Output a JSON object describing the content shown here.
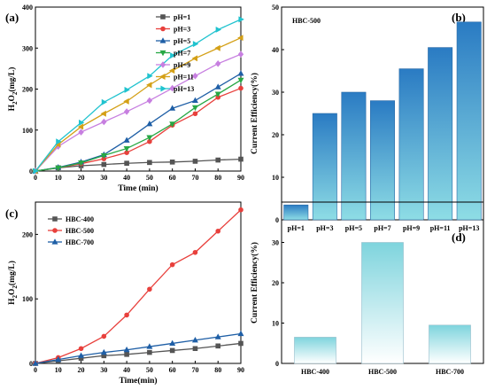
{
  "panels": {
    "a": "(a)",
    "b": "(b)",
    "c": "(c)",
    "d": "(d)"
  },
  "chart_data": [
    {
      "type": "line",
      "xlabel": "Time (min)",
      "ylabel": "H2O2(mg/L)",
      "xlim": [
        0,
        90
      ],
      "ylim": [
        0,
        400
      ],
      "xticks": [
        0,
        10,
        20,
        30,
        40,
        50,
        60,
        70,
        80,
        90
      ],
      "yticks": [
        0,
        100,
        200,
        300,
        400
      ],
      "legend_position": "top-left",
      "x": [
        0,
        10,
        20,
        30,
        40,
        50,
        60,
        70,
        80,
        90
      ],
      "series": [
        {
          "name": "pH=1",
          "color": "#555555",
          "marker": "square",
          "values": [
            0,
            8,
            13,
            16,
            19,
            21,
            22,
            24,
            27,
            29
          ]
        },
        {
          "name": "pH=3",
          "color": "#e8403c",
          "marker": "circle",
          "values": [
            0,
            8,
            18,
            30,
            45,
            72,
            112,
            140,
            180,
            202
          ]
        },
        {
          "name": "pH=5",
          "color": "#1f5fa6",
          "marker": "triangle-up",
          "values": [
            0,
            9,
            22,
            40,
            75,
            115,
            153,
            172,
            205,
            238
          ]
        },
        {
          "name": "pH=7",
          "color": "#27a844",
          "marker": "triangle-down",
          "values": [
            0,
            8,
            20,
            38,
            55,
            82,
            115,
            155,
            188,
            222
          ]
        },
        {
          "name": "pH=9",
          "color": "#c77fe0",
          "marker": "diamond",
          "values": [
            0,
            60,
            95,
            120,
            145,
            172,
            202,
            232,
            262,
            285
          ]
        },
        {
          "name": "pH=11",
          "color": "#d4a017",
          "marker": "triangle-left",
          "values": [
            0,
            65,
            108,
            140,
            170,
            210,
            245,
            275,
            300,
            325
          ]
        },
        {
          "name": "pH=13",
          "color": "#21c3cf",
          "marker": "triangle-right",
          "values": [
            0,
            72,
            118,
            168,
            198,
            232,
            282,
            310,
            345,
            370
          ]
        }
      ]
    },
    {
      "type": "bar",
      "title": "HBC-500",
      "ylabel": "Current Efficiency(%)",
      "ylim": [
        0,
        50
      ],
      "yticks": [
        0,
        10,
        20,
        30,
        40,
        50
      ],
      "categories": [
        "pH=1",
        "pH=3",
        "pH=5",
        "pH=7",
        "pH=9",
        "pH=11",
        "pH=13"
      ],
      "values": [
        3.5,
        25,
        30,
        28,
        35.5,
        40.5,
        46.5
      ],
      "bar_gradient": [
        "#2a7bc3",
        "#8edde5"
      ]
    },
    {
      "type": "line",
      "xlabel": "Time(min)",
      "ylabel": "H2O2(mg/L)",
      "xlim": [
        0,
        90
      ],
      "ylim": [
        0,
        250
      ],
      "xticks": [
        0,
        10,
        20,
        30,
        40,
        50,
        60,
        70,
        80,
        90
      ],
      "yticks": [
        0,
        100,
        200
      ],
      "legend_position": "top-left",
      "x": [
        0,
        10,
        20,
        30,
        40,
        50,
        60,
        70,
        80,
        90
      ],
      "series": [
        {
          "name": "HBC-400",
          "color": "#555555",
          "marker": "square",
          "values": [
            0,
            4,
            8,
            12,
            14,
            17,
            20,
            23,
            27,
            31
          ]
        },
        {
          "name": "HBC-500",
          "color": "#e8403c",
          "marker": "circle",
          "values": [
            0,
            9,
            23,
            42,
            75,
            115,
            153,
            172,
            205,
            238
          ]
        },
        {
          "name": "HBC-700",
          "color": "#1f5fa6",
          "marker": "triangle-up",
          "values": [
            0,
            6,
            12,
            17,
            21,
            26,
            31,
            36,
            41,
            46
          ]
        }
      ]
    },
    {
      "type": "bar",
      "ylabel": "Current Efficiency(%)",
      "ylim": [
        0,
        40
      ],
      "yticks": [
        0,
        10,
        20,
        30
      ],
      "categories": [
        "HBC-400",
        "HBC-500",
        "HBC-700"
      ],
      "values": [
        6.5,
        30,
        9.5
      ],
      "bar_gradient": [
        "#7ed4dd",
        "#ffffff"
      ]
    }
  ]
}
